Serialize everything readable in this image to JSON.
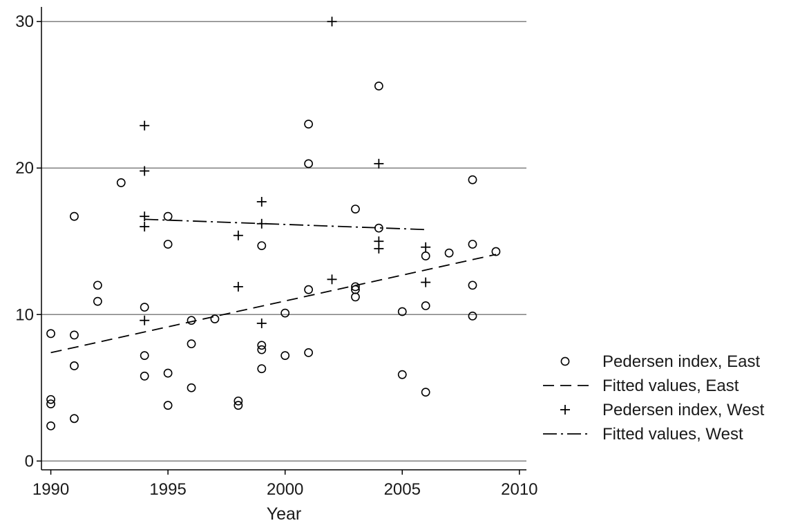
{
  "chart_data": {
    "type": "scatter",
    "title": "",
    "xlabel": "Year",
    "ylabel": "",
    "xlim": [
      1989.6,
      2010.3
    ],
    "ylim": [
      -0.6,
      31
    ],
    "xticks": [
      1990,
      1995,
      2000,
      2005,
      2010
    ],
    "yticks": [
      0,
      10,
      20,
      30
    ],
    "grid": "horizontal",
    "legend_position": "right",
    "colors": {
      "marker": "#000000",
      "grid": "#808080"
    },
    "series": [
      {
        "name": "Pedersen index, East",
        "kind": "scatter",
        "marker": "circle",
        "points": [
          [
            1990,
            8.7
          ],
          [
            1990,
            4.2
          ],
          [
            1990,
            3.9
          ],
          [
            1990,
            2.4
          ],
          [
            1991,
            16.7
          ],
          [
            1991,
            8.6
          ],
          [
            1991,
            6.5
          ],
          [
            1991,
            2.9
          ],
          [
            1992,
            12.0
          ],
          [
            1992,
            10.9
          ],
          [
            1993,
            19.0
          ],
          [
            1994,
            10.5
          ],
          [
            1994,
            7.2
          ],
          [
            1994,
            5.8
          ],
          [
            1995,
            16.7
          ],
          [
            1995,
            14.8
          ],
          [
            1995,
            6.0
          ],
          [
            1995,
            3.8
          ],
          [
            1996,
            9.6
          ],
          [
            1996,
            8.0
          ],
          [
            1996,
            5.0
          ],
          [
            1997,
            9.7
          ],
          [
            1998,
            4.1
          ],
          [
            1998,
            3.8
          ],
          [
            1999,
            14.7
          ],
          [
            1999,
            7.9
          ],
          [
            1999,
            7.6
          ],
          [
            1999,
            6.3
          ],
          [
            2000,
            10.1
          ],
          [
            2000,
            7.2
          ],
          [
            2001,
            23.0
          ],
          [
            2001,
            20.3
          ],
          [
            2001,
            11.7
          ],
          [
            2001,
            7.4
          ],
          [
            2003,
            17.2
          ],
          [
            2003,
            11.9
          ],
          [
            2003,
            11.7
          ],
          [
            2003,
            11.2
          ],
          [
            2004,
            25.6
          ],
          [
            2004,
            15.9
          ],
          [
            2005,
            10.2
          ],
          [
            2005,
            5.9
          ],
          [
            2006,
            14.0
          ],
          [
            2006,
            10.6
          ],
          [
            2006,
            4.7
          ],
          [
            2007,
            14.2
          ],
          [
            2008,
            19.2
          ],
          [
            2008,
            14.8
          ],
          [
            2008,
            12.0
          ],
          [
            2008,
            9.9
          ],
          [
            2009,
            14.3
          ]
        ]
      },
      {
        "name": "Fitted values, East",
        "kind": "line",
        "dash": "dashed",
        "points": [
          [
            1990,
            7.4
          ],
          [
            2009,
            14.1
          ]
        ]
      },
      {
        "name": "Pedersen index, West",
        "kind": "scatter",
        "marker": "plus",
        "points": [
          [
            1994,
            22.9
          ],
          [
            1994,
            19.8
          ],
          [
            1994,
            16.7
          ],
          [
            1994,
            16.0
          ],
          [
            1994,
            9.6
          ],
          [
            1998,
            15.4
          ],
          [
            1998,
            11.9
          ],
          [
            1999,
            17.7
          ],
          [
            1999,
            16.2
          ],
          [
            1999,
            9.4
          ],
          [
            2002,
            30.0
          ],
          [
            2002,
            12.4
          ],
          [
            2004,
            20.3
          ],
          [
            2004,
            15.0
          ],
          [
            2004,
            14.5
          ],
          [
            2006,
            14.6
          ],
          [
            2006,
            12.2
          ]
        ]
      },
      {
        "name": "Fitted values, West",
        "kind": "line",
        "dash": "dashdot",
        "points": [
          [
            1994,
            16.5
          ],
          [
            2006,
            15.8
          ]
        ]
      }
    ]
  }
}
